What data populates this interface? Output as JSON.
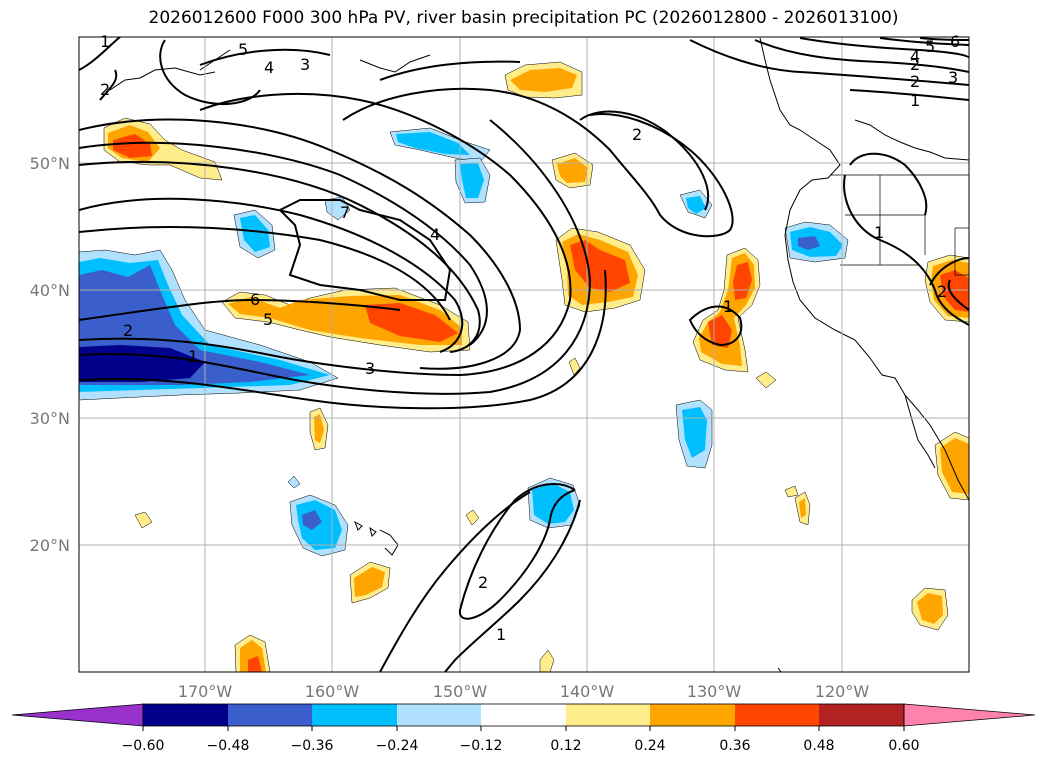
{
  "title": "2026012600 F000 300 hPa PV, river basin precipitation PC (2026012800 - 2026013100)",
  "map": {
    "lat_labels": [
      "50°N",
      "40°N",
      "30°N",
      "20°N"
    ],
    "lon_labels": [
      "170°W",
      "160°W",
      "150°W",
      "140°W",
      "130°W",
      "120°W"
    ],
    "contour_labels": [
      "1",
      "2",
      "3",
      "4",
      "5",
      "6",
      "7",
      "5",
      "4",
      "3",
      "2",
      "1",
      "2",
      "1",
      "2",
      "1",
      "1",
      "2",
      "2",
      "1",
      "2",
      "3",
      "4",
      "5",
      "6"
    ]
  },
  "colorbar": {
    "ticks": [
      "−0.60",
      "−0.48",
      "−0.36",
      "−0.24",
      "−0.12",
      "0.12",
      "0.24",
      "0.36",
      "0.48",
      "0.60"
    ],
    "colors": [
      "#9932cc",
      "#00008b",
      "#3a5fcd",
      "#00bfff",
      "#b0e2ff",
      "#ffffff",
      "#ffec8b",
      "#ffa500",
      "#ff4500",
      "#b22222",
      "#ff82ab"
    ]
  },
  "palette": {
    "p1": "#ffec8b",
    "p2": "#ffa500",
    "p3": "#ff4500",
    "n1": "#b0e2ff",
    "n2": "#00bfff",
    "n3": "#3a5fcd",
    "n4": "#00008b"
  }
}
